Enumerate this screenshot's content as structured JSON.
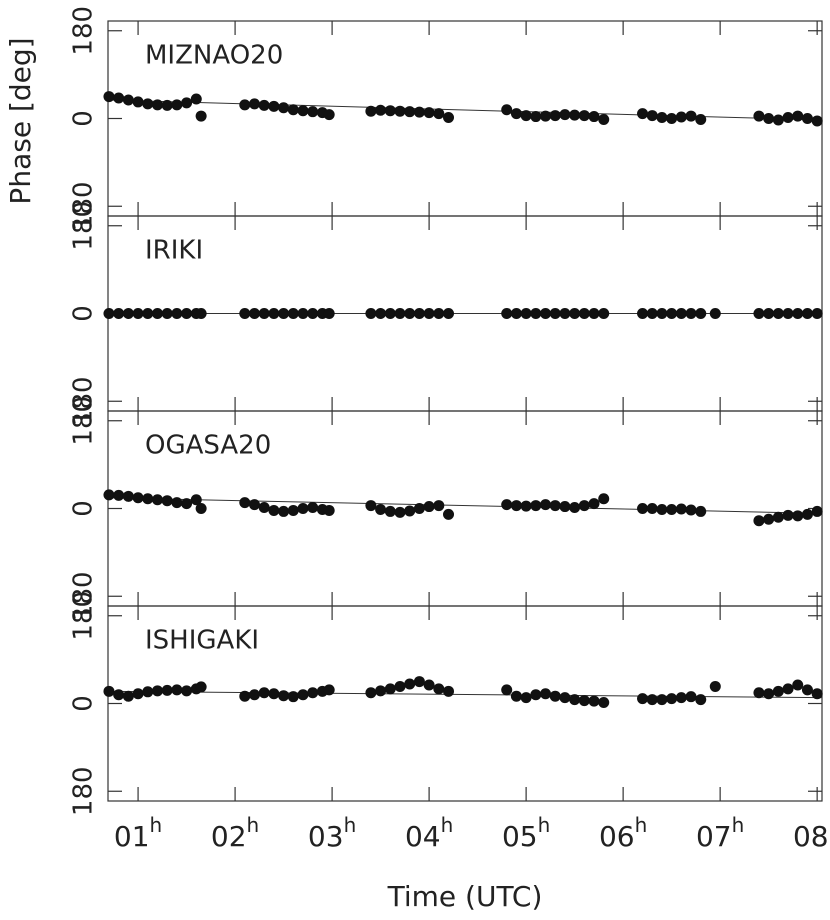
{
  "chart_data": [
    {
      "type": "scatter",
      "title": "MIZNAO20",
      "ylabel": "Phase [deg]",
      "x": [
        0.7,
        0.8,
        0.9,
        1.0,
        1.1,
        1.2,
        1.3,
        1.4,
        1.5,
        1.6,
        1.65,
        2.1,
        2.2,
        2.3,
        2.4,
        2.5,
        2.6,
        2.7,
        2.8,
        2.9,
        2.97,
        3.4,
        3.5,
        3.6,
        3.7,
        3.8,
        3.9,
        4.0,
        4.1,
        4.2,
        4.8,
        4.9,
        5.0,
        5.1,
        5.2,
        5.3,
        5.4,
        5.5,
        5.6,
        5.7,
        5.8,
        6.2,
        6.3,
        6.4,
        6.5,
        6.6,
        6.7,
        6.8,
        7.4,
        7.5,
        7.6,
        7.7,
        7.8,
        7.9,
        8.0
      ],
      "values": [
        45,
        42,
        38,
        34,
        30,
        28,
        27,
        28,
        32,
        40,
        5,
        28,
        30,
        27,
        25,
        22,
        18,
        16,
        14,
        12,
        8,
        15,
        17,
        16,
        15,
        14,
        13,
        12,
        10,
        2,
        18,
        10,
        6,
        4,
        5,
        6,
        8,
        7,
        6,
        4,
        -2,
        10,
        6,
        2,
        0,
        3,
        5,
        -2,
        5,
        0,
        -3,
        2,
        5,
        0,
        -5
      ],
      "color": "#111111",
      "fit": {
        "x": [
          0.69,
          8.05
        ],
        "values": [
          38,
          -3
        ]
      },
      "xlim": [
        0.69,
        8.05
      ],
      "xticks": [
        1,
        2,
        3,
        4,
        5,
        6,
        7,
        8
      ],
      "ylim": [
        -200,
        200
      ],
      "yticks": [
        {
          "value": -180,
          "label": "180"
        },
        0,
        180
      ]
    },
    {
      "type": "scatter",
      "title": "IRIKI",
      "x": [
        0.7,
        0.8,
        0.9,
        1.0,
        1.1,
        1.2,
        1.3,
        1.4,
        1.5,
        1.6,
        1.65,
        2.1,
        2.2,
        2.3,
        2.4,
        2.5,
        2.6,
        2.7,
        2.8,
        2.9,
        2.97,
        3.4,
        3.5,
        3.6,
        3.7,
        3.8,
        3.9,
        4.0,
        4.1,
        4.2,
        4.8,
        4.9,
        5.0,
        5.1,
        5.2,
        5.3,
        5.4,
        5.5,
        5.6,
        5.7,
        5.8,
        6.2,
        6.3,
        6.4,
        6.5,
        6.6,
        6.7,
        6.8,
        6.95,
        7.4,
        7.5,
        7.6,
        7.7,
        7.8,
        7.9,
        8.0
      ],
      "values": [
        0,
        0,
        0,
        0,
        0,
        0,
        0,
        0,
        0,
        0,
        0,
        0,
        0,
        0,
        0,
        0,
        0,
        0,
        0,
        0,
        0,
        0,
        0,
        0,
        0,
        0,
        0,
        0,
        0,
        0,
        0,
        0,
        0,
        0,
        0,
        0,
        0,
        0,
        0,
        0,
        0,
        0,
        0,
        0,
        0,
        0,
        0,
        0,
        0,
        0,
        0,
        0,
        0,
        0,
        0,
        0
      ],
      "color": "#111111",
      "fit": {
        "x": [
          0.69,
          8.05
        ],
        "values": [
          0,
          0
        ]
      },
      "xlim": [
        0.69,
        8.05
      ],
      "xticks": [
        1,
        2,
        3,
        4,
        5,
        6,
        7,
        8
      ],
      "ylim": [
        -200,
        200
      ],
      "yticks": [
        {
          "value": -180,
          "label": "180"
        },
        0,
        180
      ]
    },
    {
      "type": "scatter",
      "title": "OGASA20",
      "x": [
        0.7,
        0.8,
        0.9,
        1.0,
        1.1,
        1.2,
        1.3,
        1.4,
        1.5,
        1.6,
        1.65,
        2.1,
        2.2,
        2.3,
        2.4,
        2.5,
        2.6,
        2.7,
        2.8,
        2.9,
        2.97,
        3.4,
        3.5,
        3.6,
        3.7,
        3.8,
        3.9,
        4.0,
        4.1,
        4.2,
        4.8,
        4.9,
        5.0,
        5.1,
        5.2,
        5.3,
        5.4,
        5.5,
        5.6,
        5.7,
        5.8,
        6.2,
        6.3,
        6.4,
        6.5,
        6.6,
        6.7,
        6.8,
        7.4,
        7.5,
        7.6,
        7.7,
        7.8,
        7.9,
        8.0
      ],
      "values": [
        28,
        27,
        25,
        22,
        20,
        18,
        16,
        12,
        10,
        18,
        0,
        12,
        8,
        2,
        -4,
        -6,
        -4,
        0,
        2,
        -2,
        -4,
        6,
        -2,
        -6,
        -8,
        -5,
        0,
        4,
        6,
        -12,
        8,
        6,
        5,
        6,
        8,
        6,
        4,
        2,
        6,
        10,
        20,
        0,
        0,
        -2,
        -2,
        -1,
        -3,
        -6,
        -25,
        -22,
        -18,
        -14,
        -15,
        -12,
        -6
      ],
      "color": "#111111",
      "fit": {
        "x": [
          0.69,
          8.05
        ],
        "values": [
          22,
          -10
        ]
      },
      "xlim": [
        0.69,
        8.05
      ],
      "xticks": [
        1,
        2,
        3,
        4,
        5,
        6,
        7,
        8
      ],
      "ylim": [
        -200,
        200
      ],
      "yticks": [
        {
          "value": -180,
          "label": "180"
        },
        0,
        180
      ]
    },
    {
      "type": "scatter",
      "title": "ISHIGAKI",
      "xlabel": "Time (UTC)",
      "x": [
        0.7,
        0.8,
        0.9,
        1.0,
        1.1,
        1.2,
        1.3,
        1.4,
        1.5,
        1.6,
        1.65,
        2.1,
        2.2,
        2.3,
        2.4,
        2.5,
        2.6,
        2.7,
        2.8,
        2.9,
        2.97,
        3.4,
        3.5,
        3.6,
        3.7,
        3.8,
        3.9,
        4.0,
        4.1,
        4.2,
        4.8,
        4.9,
        5.0,
        5.1,
        5.2,
        5.3,
        5.4,
        5.5,
        5.6,
        5.7,
        5.8,
        6.2,
        6.3,
        6.4,
        6.5,
        6.6,
        6.7,
        6.8,
        6.95,
        7.4,
        7.5,
        7.6,
        7.7,
        7.8,
        7.9,
        8.0
      ],
      "values": [
        25,
        18,
        15,
        20,
        24,
        26,
        27,
        28,
        26,
        30,
        34,
        15,
        18,
        22,
        20,
        16,
        14,
        18,
        22,
        25,
        28,
        22,
        26,
        30,
        35,
        40,
        45,
        38,
        30,
        25,
        28,
        15,
        12,
        18,
        20,
        15,
        12,
        8,
        6,
        5,
        2,
        10,
        8,
        8,
        10,
        12,
        14,
        8,
        35,
        22,
        20,
        25,
        30,
        38,
        28,
        20
      ],
      "color": "#111111",
      "fit": {
        "x": [
          0.69,
          8.05
        ],
        "values": [
          25,
          12
        ]
      },
      "xlim": [
        0.69,
        8.05
      ],
      "xticks": [
        {
          "value": 1,
          "label": "01h"
        },
        {
          "value": 2,
          "label": "02h"
        },
        {
          "value": 3,
          "label": "03h"
        },
        {
          "value": 4,
          "label": "04h"
        },
        {
          "value": 5,
          "label": "05h"
        },
        {
          "value": 6,
          "label": "06h"
        },
        {
          "value": 7,
          "label": "07h"
        },
        {
          "value": 8,
          "label": "08h"
        }
      ],
      "ylim": [
        -200,
        200
      ],
      "yticks": [
        {
          "value": -180,
          "label": "180"
        },
        0,
        180
      ]
    }
  ]
}
